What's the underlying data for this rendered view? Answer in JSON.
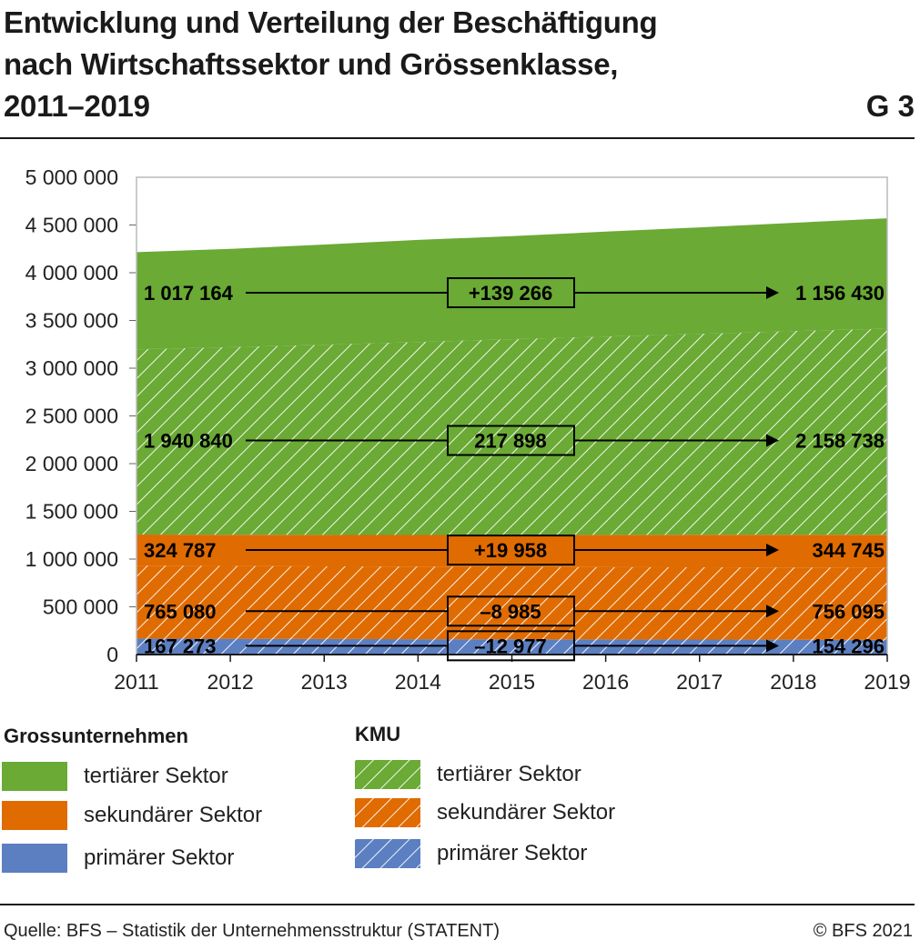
{
  "header": {
    "title_lines": [
      "Entwicklung und Verteilung der Beschäftigung",
      "nach Wirtschaftssektor und Grössenklasse,",
      "2011–2019"
    ],
    "figure_id": "G 3"
  },
  "colors": {
    "tertiary": "#6aaa35",
    "secondary": "#e06b00",
    "primary": "#5b7fc1",
    "hatch": "#ffffff",
    "plot_border": "#bbbbbb",
    "grid": "#cccccc",
    "arrow": "#000000"
  },
  "chart_data": {
    "type": "area",
    "stacked": true,
    "x": [
      2011,
      2012,
      2013,
      2014,
      2015,
      2016,
      2017,
      2018,
      2019
    ],
    "ylim": [
      0,
      5000000
    ],
    "yticks": [
      0,
      500000,
      1000000,
      1500000,
      2000000,
      2500000,
      3000000,
      3500000,
      4000000,
      4500000,
      5000000
    ],
    "ytick_labels": [
      "0",
      "500 000",
      "1 000 000",
      "1 500 000",
      "2 000 000",
      "2 500 000",
      "3 000 000",
      "3 500 000",
      "4 000 000",
      "4 500 000",
      "5 000 000"
    ],
    "xtick_labels": [
      "2011",
      "2012",
      "2013",
      "2014",
      "2015",
      "2016",
      "2017",
      "2018",
      "2019"
    ],
    "grid": true,
    "series": [
      {
        "group": "KMU",
        "sector": "primärer Sektor",
        "color": "primary",
        "hatched": true,
        "values": [
          167273,
          165000,
          163000,
          161000,
          160000,
          158000,
          157000,
          155500,
          154296
        ]
      },
      {
        "group": "KMU",
        "sector": "sekundärer Sektor",
        "color": "secondary",
        "hatched": true,
        "values": [
          765080,
          763000,
          761000,
          760000,
          759000,
          758000,
          757500,
          757000,
          756095
        ]
      },
      {
        "group": "Grossunternehmen",
        "sector": "sekundärer Sektor",
        "color": "secondary",
        "hatched": false,
        "values": [
          324787,
          327000,
          329000,
          331000,
          334000,
          337000,
          340000,
          342500,
          344745
        ]
      },
      {
        "group": "KMU",
        "sector": "tertiärer Sektor",
        "color": "tertiary",
        "hatched": true,
        "values": [
          1940840,
          1965000,
          1992000,
          2022000,
          2050000,
          2078000,
          2105000,
          2133000,
          2158738
        ]
      },
      {
        "group": "Grossunternehmen",
        "sector": "tertiärer Sektor",
        "color": "tertiary",
        "hatched": false,
        "values": [
          1017164,
          1030000,
          1050000,
          1070000,
          1080000,
          1100000,
          1115000,
          1135000,
          1156430
        ]
      }
    ],
    "annotations": [
      {
        "start": "1 017 164",
        "change": "+139 266",
        "end": "1 156 430"
      },
      {
        "start": "1 940 840",
        "change": "217 898",
        "end": "2 158 738"
      },
      {
        "start": "324 787",
        "change": "+19 958",
        "end": "344 745"
      },
      {
        "start": "765 080",
        "change": "–8 985",
        "end": "756 095"
      },
      {
        "start": "167 273",
        "change": "–12 977",
        "end": "154 296"
      }
    ]
  },
  "legend": {
    "groups": [
      {
        "title": "Grossunternehmen",
        "hatched": false,
        "items": [
          {
            "label": "tertiärer Sektor",
            "color": "tertiary"
          },
          {
            "label": "sekundärer Sektor",
            "color": "secondary"
          },
          {
            "label": "primärer Sektor",
            "color": "primary"
          }
        ]
      },
      {
        "title": "KMU",
        "hatched": true,
        "items": [
          {
            "label": "tertiärer Sektor",
            "color": "tertiary"
          },
          {
            "label": "sekundärer Sektor",
            "color": "secondary"
          },
          {
            "label": "primärer Sektor",
            "color": "primary"
          }
        ]
      }
    ]
  },
  "footer": {
    "source": "Quelle: BFS – Statistik der Unternehmensstruktur (STATENT)",
    "copyright": "© BFS 2021"
  }
}
